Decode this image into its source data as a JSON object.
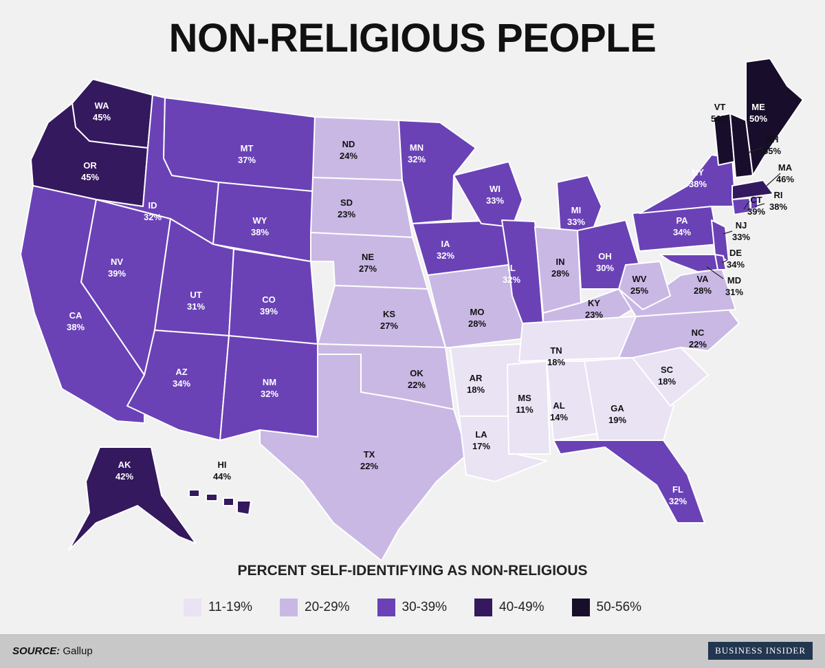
{
  "title": "NON-RELIGIOUS PEOPLE",
  "legend": {
    "title": "PERCENT SELF-IDENTIFYING AS NON-RELIGIOUS",
    "bins": [
      {
        "label": "11-19%",
        "color": "#e9e3f4"
      },
      {
        "label": "20-29%",
        "color": "#c9b8e4"
      },
      {
        "label": "30-39%",
        "color": "#6a42b6"
      },
      {
        "label": "40-49%",
        "color": "#34195e"
      },
      {
        "label": "50-56%",
        "color": "#180d2b"
      }
    ]
  },
  "states": [
    {
      "abbr": "WA",
      "value": "45%"
    },
    {
      "abbr": "OR",
      "value": "45%"
    },
    {
      "abbr": "CA",
      "value": "38%"
    },
    {
      "abbr": "NV",
      "value": "39%"
    },
    {
      "abbr": "ID",
      "value": "32%"
    },
    {
      "abbr": "MT",
      "value": "37%"
    },
    {
      "abbr": "WY",
      "value": "38%"
    },
    {
      "abbr": "UT",
      "value": "31%"
    },
    {
      "abbr": "CO",
      "value": "39%"
    },
    {
      "abbr": "AZ",
      "value": "34%"
    },
    {
      "abbr": "NM",
      "value": "32%"
    },
    {
      "abbr": "ND",
      "value": "24%"
    },
    {
      "abbr": "SD",
      "value": "23%"
    },
    {
      "abbr": "NE",
      "value": "27%"
    },
    {
      "abbr": "KS",
      "value": "27%"
    },
    {
      "abbr": "OK",
      "value": "22%"
    },
    {
      "abbr": "TX",
      "value": "22%"
    },
    {
      "abbr": "MN",
      "value": "32%"
    },
    {
      "abbr": "IA",
      "value": "32%"
    },
    {
      "abbr": "MO",
      "value": "28%"
    },
    {
      "abbr": "AR",
      "value": "18%"
    },
    {
      "abbr": "LA",
      "value": "17%"
    },
    {
      "abbr": "WI",
      "value": "33%"
    },
    {
      "abbr": "IL",
      "value": "32%"
    },
    {
      "abbr": "MI",
      "value": "33%"
    },
    {
      "abbr": "IN",
      "value": "28%"
    },
    {
      "abbr": "OH",
      "value": "30%"
    },
    {
      "abbr": "KY",
      "value": "23%"
    },
    {
      "abbr": "TN",
      "value": "18%"
    },
    {
      "abbr": "MS",
      "value": "11%"
    },
    {
      "abbr": "AL",
      "value": "14%"
    },
    {
      "abbr": "GA",
      "value": "19%"
    },
    {
      "abbr": "FL",
      "value": "32%"
    },
    {
      "abbr": "SC",
      "value": "18%"
    },
    {
      "abbr": "NC",
      "value": "22%"
    },
    {
      "abbr": "VA",
      "value": "28%"
    },
    {
      "abbr": "WV",
      "value": "25%"
    },
    {
      "abbr": "PA",
      "value": "34%"
    },
    {
      "abbr": "NY",
      "value": "38%"
    },
    {
      "abbr": "NJ",
      "value": "33%"
    },
    {
      "abbr": "DE",
      "value": "34%"
    },
    {
      "abbr": "MD",
      "value": "31%"
    },
    {
      "abbr": "CT",
      "value": "39%"
    },
    {
      "abbr": "RI",
      "value": "38%"
    },
    {
      "abbr": "MA",
      "value": "46%"
    },
    {
      "abbr": "VT",
      "value": "56%"
    },
    {
      "abbr": "NH",
      "value": "55%"
    },
    {
      "abbr": "ME",
      "value": "50%"
    },
    {
      "abbr": "AK",
      "value": "42%"
    },
    {
      "abbr": "HI",
      "value": "44%"
    }
  ],
  "footer": {
    "source_key": "SOURCE:",
    "source_value": "Gallup",
    "brand": "BUSINESS INSIDER"
  }
}
